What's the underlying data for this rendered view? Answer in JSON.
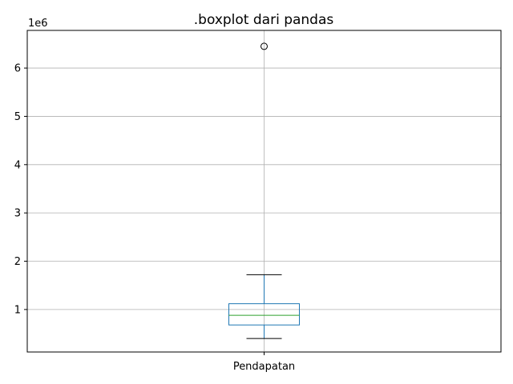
{
  "chart_data": {
    "type": "boxplot",
    "title": ".boxplot dari pandas",
    "xlabel": "",
    "ylabel": "",
    "y_offset_label": "1e6",
    "categories": [
      "Pendapatan"
    ],
    "y_ticks": [
      {
        "value": 1,
        "label": "1"
      },
      {
        "value": 2,
        "label": "2"
      },
      {
        "value": 3,
        "label": "3"
      },
      {
        "value": 4,
        "label": "4"
      },
      {
        "value": 5,
        "label": "5"
      },
      {
        "value": 6,
        "label": "6"
      }
    ],
    "ylim": [
      0.12,
      6.78
    ],
    "grid": true,
    "boxes": [
      {
        "name": "Pendapatan",
        "whisker_low": 0.4,
        "q1": 0.68,
        "median": 0.88,
        "q3": 1.12,
        "whisker_high": 1.72,
        "outliers": [
          6.45
        ]
      }
    ],
    "colors": {
      "box": "#1f77b4",
      "median": "#2ca02c",
      "whisker": "#1f77b4",
      "cap": "#000000",
      "grid": "#b0b0b0",
      "outlier_edge": "#000000"
    }
  }
}
